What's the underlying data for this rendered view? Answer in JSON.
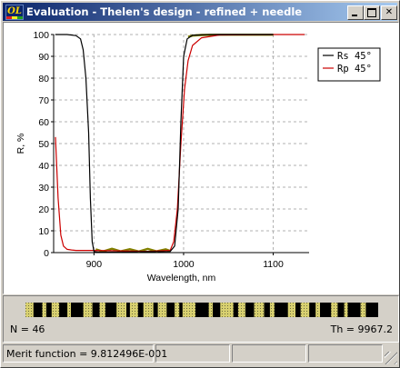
{
  "window": {
    "title": "Evaluation - Thelen's design - refined + needle",
    "icon_text": "OL"
  },
  "chart_data": {
    "type": "line",
    "xlabel": "Wavelength, nm",
    "ylabel": "R, %",
    "xlim": [
      855,
      1140
    ],
    "ylim": [
      0,
      100
    ],
    "x_ticks": [
      900,
      1000,
      1100
    ],
    "y_ticks": [
      0,
      10,
      20,
      30,
      40,
      50,
      60,
      70,
      80,
      90,
      100
    ],
    "grid": true,
    "legend_position": "top-right",
    "series": [
      {
        "name": "Rs 45°",
        "color": "#000000",
        "x": [
          857,
          870,
          880,
          885,
          888,
          891,
          894,
          896,
          898,
          900,
          905,
          930,
          960,
          985,
          990,
          994,
          997,
          1000,
          1004,
          1010,
          1030,
          1060,
          1100
        ],
        "y": [
          100,
          100,
          99.5,
          98,
          93,
          80,
          55,
          25,
          5,
          0.5,
          0.2,
          0.3,
          0.4,
          0.5,
          3,
          20,
          60,
          90,
          98,
          99.7,
          100,
          100,
          100
        ]
      },
      {
        "name": "Rp 45°",
        "color": "#cc0000",
        "x": [
          857,
          860,
          863,
          866,
          870,
          875,
          880,
          890,
          900,
          930,
          960,
          985,
          989,
          993,
          997,
          1001,
          1005,
          1010,
          1020,
          1040,
          1100,
          1135
        ],
        "y": [
          53,
          25,
          8,
          3,
          1.5,
          1.2,
          1,
          1,
          1,
          0.8,
          0.6,
          1,
          5,
          20,
          50,
          75,
          88,
          95,
          98.5,
          99.8,
          100,
          100
        ]
      },
      {
        "name": "",
        "color": "#808000",
        "x": [
          1005,
          1010,
          1020,
          1040,
          1060,
          1080,
          1100
        ],
        "y": [
          99,
          99.5,
          99.8,
          99.9,
          99.9,
          99.9,
          99.9
        ]
      },
      {
        "name": "",
        "color": "#808000",
        "x": [
          902,
          910,
          920,
          930,
          940,
          950,
          960,
          970,
          980,
          985
        ],
        "y": [
          1.5,
          0.5,
          1.8,
          0.6,
          1.6,
          0.5,
          1.7,
          0.6,
          1.5,
          0.8
        ]
      }
    ]
  },
  "design": {
    "layer_count_label": "N = 46",
    "thickness_label": "Th = 9967.2",
    "layer_count": 46
  },
  "status": {
    "merit_label": "Merit function =",
    "merit_value": "9.812496E-001"
  }
}
